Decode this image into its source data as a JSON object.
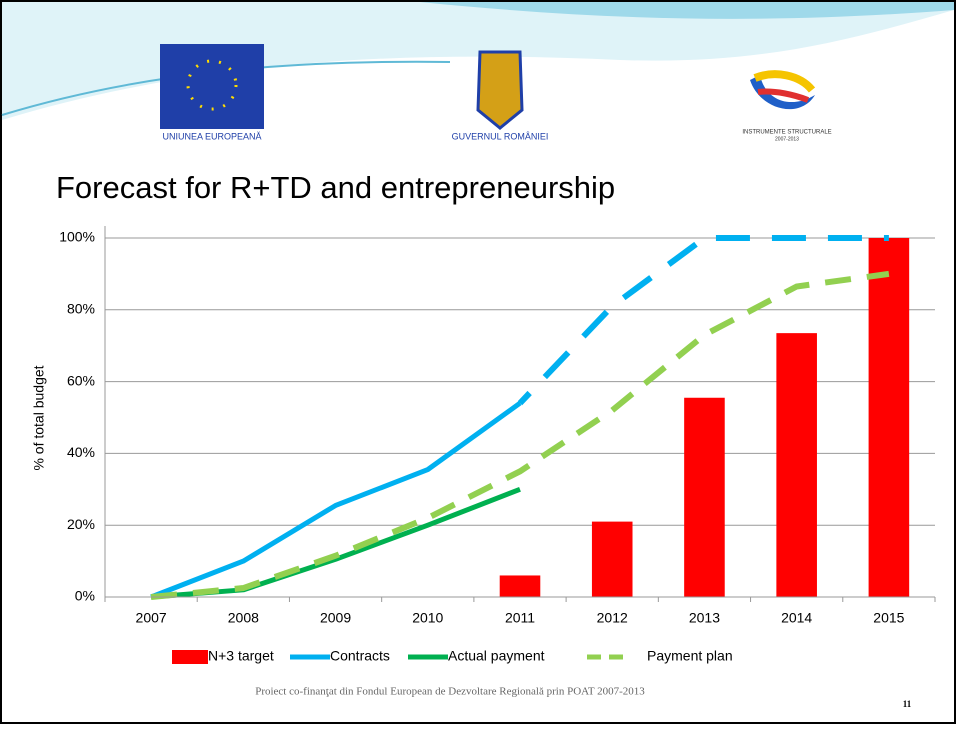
{
  "header": {
    "logos": [
      "UNIUNEA EUROPEANĂ",
      "GUVERNUL ROMÂNIEI",
      "INSTRUMENTE STRUCTURALE"
    ],
    "logo_years": "2007-2013"
  },
  "chart_data": {
    "type": "bar_line",
    "title": "Forecast for R+TD and entrepreneurship",
    "y_label": "% of total budget",
    "categories": [
      "2007",
      "2008",
      "2009",
      "2010",
      "2011",
      "2012",
      "2013",
      "2014",
      "2015"
    ],
    "ylim": [
      0,
      100
    ],
    "yticks": [
      {
        "value": 0,
        "label": "0%"
      },
      {
        "value": 20,
        "label": "20%"
      },
      {
        "value": 40,
        "label": "40%"
      },
      {
        "value": 60,
        "label": "60%"
      },
      {
        "value": 80,
        "label": "80%"
      },
      {
        "value": 100,
        "label": "100%"
      }
    ],
    "grid": true,
    "series": [
      {
        "name": "N+3 target",
        "kind": "bar",
        "color": "#ff0000",
        "values": [
          null,
          null,
          null,
          null,
          6,
          21,
          55.5,
          73.5,
          100
        ]
      },
      {
        "name": "Contracts",
        "kind": "line",
        "color": "#00b0f0",
        "dashed_after": "2011",
        "values": [
          0,
          10,
          25.5,
          35.5,
          54,
          81,
          100,
          100,
          100
        ]
      },
      {
        "name": "Actual payment",
        "kind": "line",
        "color": "#00b050",
        "values": [
          0,
          2,
          10.5,
          20,
          30,
          null,
          null,
          null,
          null
        ]
      },
      {
        "name": "Payment plan",
        "kind": "dashed",
        "color": "#92d050",
        "values": [
          0,
          2.5,
          11.5,
          22,
          35,
          52,
          73,
          86.5,
          90
        ]
      }
    ]
  },
  "footer": {
    "text": "Proiect co-finanţat din Fondul European de Dezvoltare Regională prin POAT 2007-2013",
    "page": "11"
  }
}
